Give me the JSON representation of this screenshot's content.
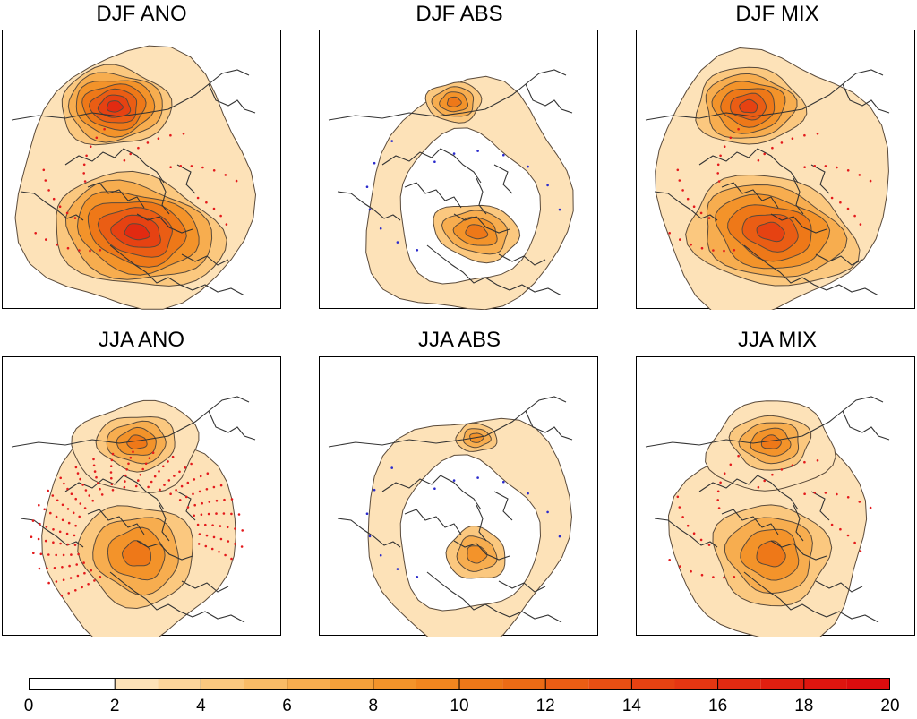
{
  "chart_data": [
    {
      "type": "heatmap",
      "title": "DJF ANO",
      "projection": "north polar stereographic",
      "field": "filled contours over Northern Hemisphere",
      "max_level": 16,
      "centers": [
        "North Pacific",
        "North Atlantic"
      ],
      "stippling": "red"
    },
    {
      "type": "heatmap",
      "title": "DJF ABS",
      "projection": "north polar stereographic",
      "field": "filled contours over Northern Hemisphere",
      "max_level": 10,
      "centers": [
        "North Pacific",
        "North Atlantic"
      ],
      "stippling": "blue"
    },
    {
      "type": "heatmap",
      "title": "DJF MIX",
      "projection": "north polar stereographic",
      "field": "filled contours over Northern Hemisphere",
      "max_level": 14,
      "centers": [
        "North Pacific",
        "North Atlantic"
      ],
      "stippling": "red"
    },
    {
      "type": "heatmap",
      "title": "JJA ANO",
      "projection": "north polar stereographic",
      "field": "filled contours over Northern Hemisphere",
      "max_level": 10,
      "centers": [
        "North Pacific",
        "Arctic/Greenland",
        "North Atlantic"
      ],
      "stippling": "red"
    },
    {
      "type": "heatmap",
      "title": "JJA ABS",
      "projection": "north polar stereographic",
      "field": "filled contours over Northern Hemisphere",
      "max_level": 8,
      "centers": [
        "North Pacific",
        "North Atlantic"
      ],
      "stippling": "blue"
    },
    {
      "type": "heatmap",
      "title": "JJA MIX",
      "projection": "north polar stereographic",
      "field": "filled contours over Northern Hemisphere",
      "max_level": 10,
      "centers": [
        "North Pacific",
        "North Atlantic"
      ],
      "stippling": "red"
    }
  ],
  "colorbar": {
    "levels": [
      0,
      1,
      2,
      3,
      4,
      5,
      6,
      7,
      8,
      9,
      10,
      11,
      12,
      13,
      14,
      15,
      16,
      17,
      18,
      19,
      20
    ],
    "colors": [
      "#ffffff",
      "#ffffff",
      "#fde2b8",
      "#fcd59b",
      "#fbc87f",
      "#f9bb66",
      "#f7ad4f",
      "#f5a03a",
      "#f3932a",
      "#f1861f",
      "#ee7818",
      "#ec6b15",
      "#ea5d14",
      "#e84f13",
      "#e64212",
      "#e43612",
      "#e22a11",
      "#e01f10",
      "#de150f",
      "#dc0c0e"
    ],
    "tick_labels": [
      "0",
      "2",
      "4",
      "6",
      "8",
      "10",
      "12",
      "14",
      "16",
      "18",
      "20"
    ]
  },
  "stipple_colors": {
    "significant_positive": "#e31a1c",
    "significant_negative": "#2b2bcc"
  },
  "coastline_color": "#333333"
}
